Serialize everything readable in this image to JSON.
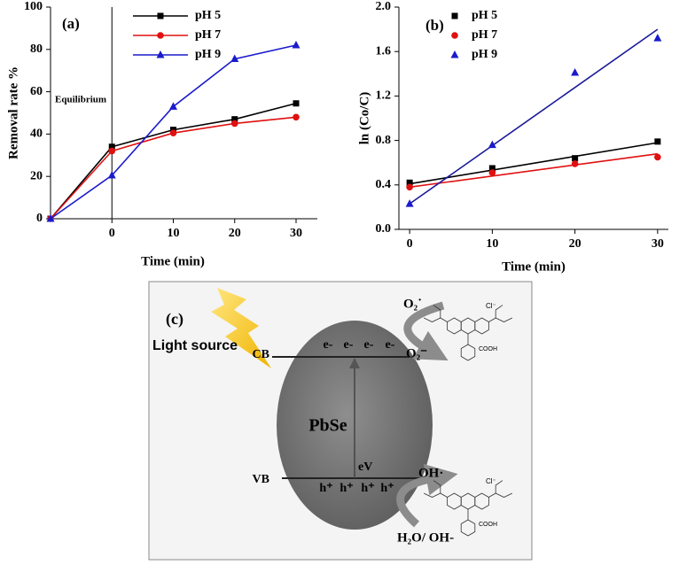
{
  "chart_data": [
    {
      "type": "line",
      "title": "(a)",
      "x_label": "Time (min)",
      "y_label": "Removal rate %",
      "categories": [
        null,
        "0",
        "10",
        "20",
        "30"
      ],
      "series": [
        {
          "name": "pH 5",
          "color": "#000000",
          "marker": "square",
          "values": [
            0,
            34,
            42,
            47,
            54.5
          ]
        },
        {
          "name": "pH 7",
          "color": "#e01010",
          "marker": "circle",
          "values": [
            0,
            32,
            40.5,
            45,
            48
          ]
        },
        {
          "name": "pH 9",
          "color": "#1a1acc",
          "marker": "triangle",
          "values": [
            0,
            20.5,
            53,
            75.5,
            82
          ]
        }
      ],
      "ylim": [
        0,
        100
      ],
      "yticks": [
        0,
        20,
        40,
        60,
        80,
        100
      ],
      "annotations": [
        {
          "text": "Equilibrium",
          "at": 1
        }
      ],
      "legend": "upper right"
    },
    {
      "type": "scatter",
      "title": "(b)",
      "x_label": "Time (min)",
      "y_label": "ln (Co/C)",
      "x": [
        0,
        10,
        20,
        30
      ],
      "xlim": [
        -1.3,
        31.3
      ],
      "xticks": [
        0,
        10,
        20,
        30
      ],
      "ylim": [
        0,
        2
      ],
      "yticks": [
        {
          "value": 0,
          "label": "0.0"
        },
        0.4,
        0.8,
        1.2,
        1.6,
        {
          "value": 2,
          "label": "2.0"
        }
      ],
      "series": [
        {
          "name": "pH 5",
          "color": "#000000",
          "marker": "square",
          "values": [
            0.42,
            0.55,
            0.64,
            0.79
          ],
          "fit": {
            "x": [
              0,
              30
            ],
            "values": [
              0.41,
              0.78
            ],
            "color": "#000000"
          }
        },
        {
          "name": "pH 7",
          "color": "#e01010",
          "marker": "circle",
          "values": [
            0.38,
            0.51,
            0.59,
            0.65
          ],
          "fit": {
            "x": [
              0,
              30
            ],
            "values": [
              0.38,
              0.68
            ],
            "color": "#e01010"
          }
        },
        {
          "name": "pH 9",
          "color": "#1a1acc",
          "marker": "triangle",
          "values": [
            0.23,
            0.76,
            1.41,
            1.72
          ],
          "fit": {
            "x": [
              0,
              30
            ],
            "values": [
              0.23,
              1.8
            ],
            "color": "#1a1a99"
          }
        }
      ],
      "legend": "upper left"
    }
  ],
  "diagram": {
    "label": "(c)",
    "light": "Light source",
    "cb": "CB",
    "vb": "VB",
    "electrons": [
      "e-",
      "e-",
      "e-",
      "e-"
    ],
    "holes": [
      "h⁺",
      "h⁺",
      "h⁺",
      "h⁺"
    ],
    "material": "PbSe",
    "gap": "eV",
    "o2_top": "O₂˙",
    "o2_bottom": "O₂⁻",
    "oh": "OH·",
    "h2o": "H₂O/ OH-",
    "molecules": [
      {
        "anion": "Cl⁻",
        "group": "COOH"
      },
      {
        "anion": "Cl⁻",
        "group": "COOH"
      }
    ]
  }
}
